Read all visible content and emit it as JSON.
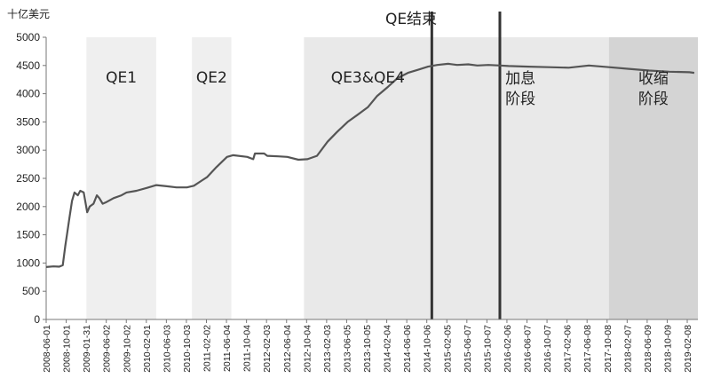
{
  "chart_data": {
    "type": "line",
    "title": "QE结束",
    "ylabel": "十亿美元",
    "ylim": [
      0,
      5000
    ],
    "yticks": [
      0,
      500,
      1000,
      1500,
      2000,
      2500,
      3000,
      3500,
      4000,
      4500,
      5000
    ],
    "xlim": [
      "2008-06-01",
      "2019-04-01"
    ],
    "xtick_labels": [
      "2008-06-01",
      "2008-10-01",
      "2009-01-31",
      "2009-06-02",
      "2009-10-02",
      "2010-02-01",
      "2010-06-03",
      "2010-10-03",
      "2011-02-02",
      "2011-06-04",
      "2011-10-04",
      "2012-02-03",
      "2012-06-04",
      "2012-10-04",
      "2013-02-03",
      "2013-06-05",
      "2013-10-05",
      "2014-02-04",
      "2014-06-06",
      "2014-10-06",
      "2015-02-05",
      "2015-06-07",
      "2015-10-07",
      "2016-02-06",
      "2016-06-07",
      "2016-10-07",
      "2017-02-06",
      "2017-06-08",
      "2017-10-08",
      "2018-02-07",
      "2018-06-09",
      "2018-10-09",
      "2019-02-08"
    ],
    "grid": false,
    "regions": [
      {
        "label": "QE1",
        "start": "2009-01-31",
        "end": "2010-03-31",
        "color": "#efefef"
      },
      {
        "label": "QE2",
        "start": "2010-11-03",
        "end": "2011-06-30",
        "color": "#efefef"
      },
      {
        "label": "QE3&QE4",
        "start": "2012-09-13",
        "end": "2014-10-29",
        "color": "#e9e9e9"
      },
      {
        "label": "加息\n阶段",
        "start": "2014-10-29",
        "end": "2017-10-08",
        "color": "#e9e9e9"
      },
      {
        "label": "收缩\n阶段",
        "start": "2017-10-08",
        "end": "2019-04-01",
        "color": "#d4d4d4"
      }
    ],
    "vlines": [
      {
        "date": "2014-10-29"
      },
      {
        "date": "2015-12-16"
      }
    ],
    "series": [
      {
        "color": "#555555",
        "points": [
          [
            "2008-06-01",
            930
          ],
          [
            "2008-07-15",
            940
          ],
          [
            "2008-08-20",
            935
          ],
          [
            "2008-09-10",
            960
          ],
          [
            "2008-09-25",
            1300
          ],
          [
            "2008-10-05",
            1500
          ],
          [
            "2008-10-20",
            1800
          ],
          [
            "2008-11-05",
            2100
          ],
          [
            "2008-11-20",
            2250
          ],
          [
            "2008-12-10",
            2200
          ],
          [
            "2008-12-25",
            2280
          ],
          [
            "2009-01-15",
            2250
          ],
          [
            "2009-02-05",
            1900
          ],
          [
            "2009-02-20",
            2000
          ],
          [
            "2009-03-15",
            2050
          ],
          [
            "2009-04-05",
            2200
          ],
          [
            "2009-04-20",
            2150
          ],
          [
            "2009-05-10",
            2050
          ],
          [
            "2009-06-02",
            2080
          ],
          [
            "2009-07-15",
            2150
          ],
          [
            "2009-09-01",
            2200
          ],
          [
            "2009-10-02",
            2250
          ],
          [
            "2009-12-01",
            2280
          ],
          [
            "2010-02-01",
            2330
          ],
          [
            "2010-04-01",
            2380
          ],
          [
            "2010-06-03",
            2360
          ],
          [
            "2010-08-01",
            2340
          ],
          [
            "2010-10-03",
            2340
          ],
          [
            "2010-11-15",
            2370
          ],
          [
            "2011-01-01",
            2460
          ],
          [
            "2011-02-02",
            2520
          ],
          [
            "2011-04-01",
            2700
          ],
          [
            "2011-06-04",
            2880
          ],
          [
            "2011-07-10",
            2910
          ],
          [
            "2011-10-04",
            2880
          ],
          [
            "2011-11-10",
            2840
          ],
          [
            "2011-11-20",
            2940
          ],
          [
            "2012-01-15",
            2940
          ],
          [
            "2012-02-03",
            2900
          ],
          [
            "2012-04-10",
            2890
          ],
          [
            "2012-06-04",
            2880
          ],
          [
            "2012-08-10",
            2830
          ],
          [
            "2012-10-04",
            2840
          ],
          [
            "2012-12-01",
            2900
          ],
          [
            "2013-02-03",
            3150
          ],
          [
            "2013-04-01",
            3320
          ],
          [
            "2013-06-05",
            3500
          ],
          [
            "2013-08-01",
            3620
          ],
          [
            "2013-10-05",
            3760
          ],
          [
            "2013-12-01",
            3960
          ],
          [
            "2014-02-04",
            4120
          ],
          [
            "2014-04-01",
            4270
          ],
          [
            "2014-06-06",
            4370
          ],
          [
            "2014-08-01",
            4420
          ],
          [
            "2014-10-06",
            4480
          ],
          [
            "2014-12-01",
            4510
          ],
          [
            "2015-02-05",
            4530
          ],
          [
            "2015-04-01",
            4510
          ],
          [
            "2015-06-07",
            4520
          ],
          [
            "2015-08-01",
            4500
          ],
          [
            "2015-10-07",
            4510
          ],
          [
            "2015-12-16",
            4500
          ],
          [
            "2016-02-06",
            4490
          ],
          [
            "2016-06-07",
            4480
          ],
          [
            "2016-10-07",
            4470
          ],
          [
            "2017-02-06",
            4460
          ],
          [
            "2017-06-08",
            4500
          ],
          [
            "2017-10-08",
            4470
          ],
          [
            "2018-02-07",
            4440
          ],
          [
            "2018-06-09",
            4410
          ],
          [
            "2018-10-09",
            4390
          ],
          [
            "2019-02-08",
            4380
          ],
          [
            "2019-03-10",
            4370
          ]
        ]
      }
    ]
  }
}
